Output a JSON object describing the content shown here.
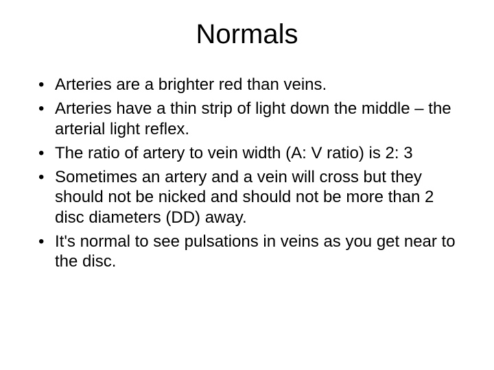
{
  "slide": {
    "title": "Normals",
    "title_fontsize": 40,
    "body_fontsize": 24,
    "background_color": "#ffffff",
    "text_color": "#000000",
    "font_family": "Arial",
    "bullets": [
      "Arteries are a brighter red than veins.",
      "Arteries have a thin strip of light down the middle – the arterial light reflex.",
      "The ratio of artery to vein width (A: V ratio) is 2: 3",
      "Sometimes an artery and a vein will cross but they should not be nicked and should not be more than 2 disc diameters (DD) away.",
      "It's normal to see pulsations in veins as you get near to the disc."
    ]
  }
}
